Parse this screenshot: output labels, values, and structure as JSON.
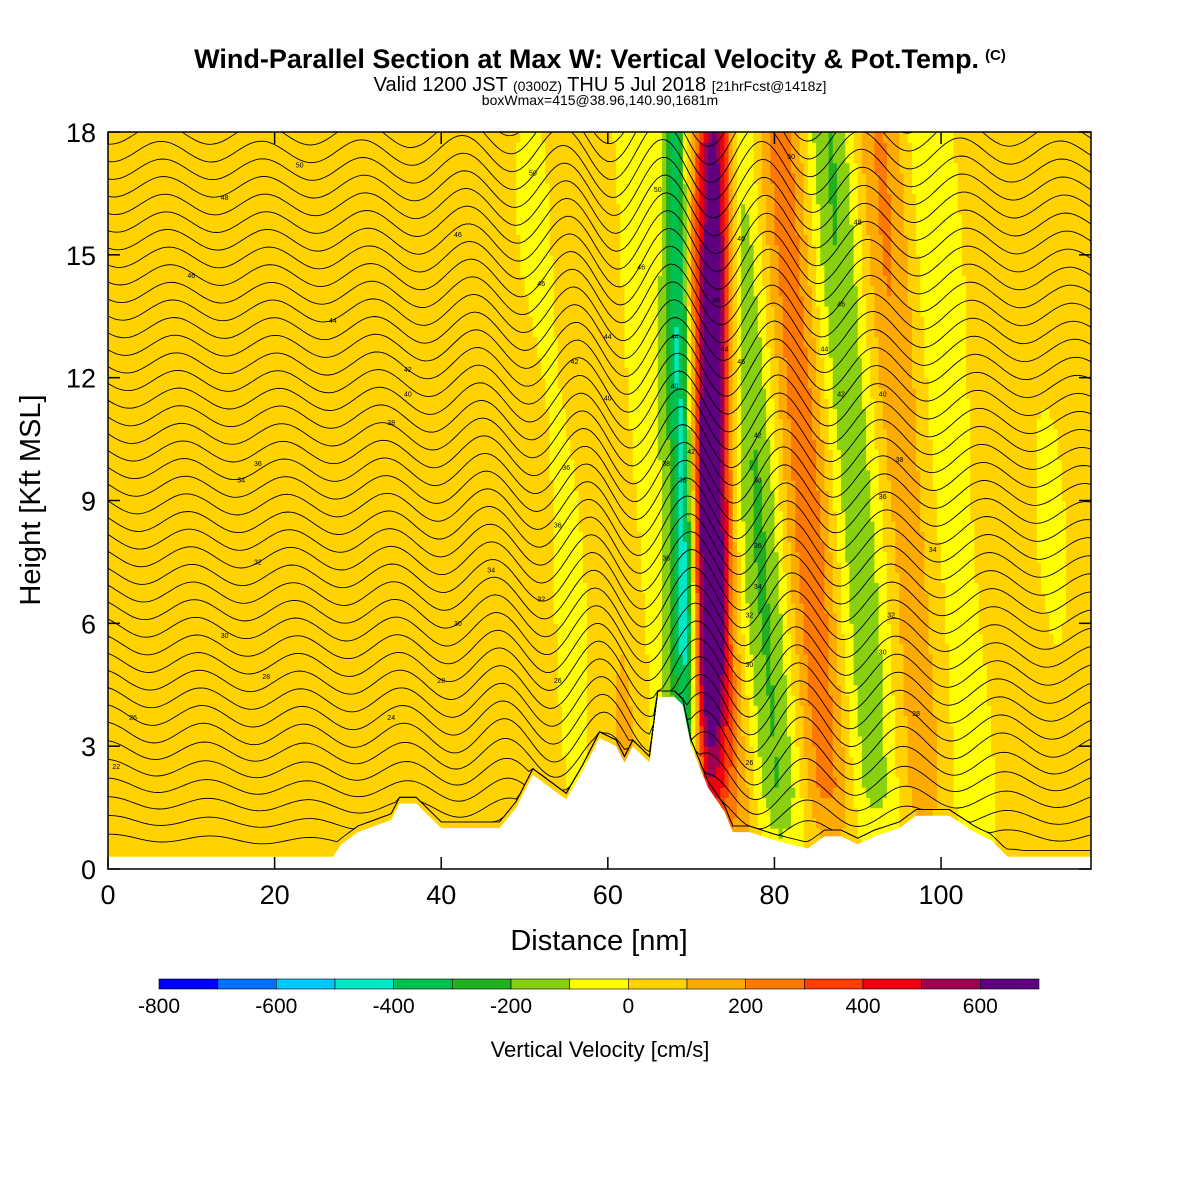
{
  "header": {
    "title": "Wind-Parallel Section at Max W: Vertical Velocity & Pot.Temp.",
    "title_mark": "(C)",
    "valid_prefix": "Valid 1200 JST",
    "valid_utc": "(0300Z)",
    "valid_date": "THU 5 Jul 2018",
    "forecast": "[21hrFcst@1418z]",
    "box_info": "boxWmax=415@38.96,140.90,1681m"
  },
  "chart_data": {
    "type": "heatmap",
    "xlabel": "Distance [nm]",
    "ylabel": "Height [Kft MSL]",
    "xlim": [
      0,
      118
    ],
    "ylim": [
      0,
      18
    ],
    "x_ticks": [
      0,
      20,
      40,
      60,
      80,
      100
    ],
    "y_ticks": [
      0,
      3,
      6,
      9,
      12,
      15,
      18
    ],
    "colorbar": {
      "label": "Vertical Velocity [cm/s]",
      "bounds": [
        -800,
        -700,
        -600,
        -500,
        -400,
        -300,
        -200,
        -100,
        0,
        100,
        200,
        300,
        400,
        500,
        600,
        700
      ],
      "tick_values": [
        -800,
        -600,
        -400,
        -200,
        0,
        200,
        400,
        600
      ],
      "tick_labels": [
        "-800",
        "-600",
        "-400",
        "-200",
        "0",
        "200",
        "400",
        "600"
      ],
      "colors": [
        "#0000ff",
        "#0070ff",
        "#00c8ff",
        "#00e8c8",
        "#00c050",
        "#20b020",
        "#88d010",
        "#ffff00",
        "#ffd200",
        "#ffaa00",
        "#ff7800",
        "#ff3c00",
        "#ee0010",
        "#a00050",
        "#600080"
      ]
    },
    "terrain": [
      [
        0,
        0.3
      ],
      [
        27,
        0.3
      ],
      [
        28,
        0.6
      ],
      [
        30,
        0.9
      ],
      [
        34,
        1.2
      ],
      [
        35,
        1.6
      ],
      [
        37,
        1.6
      ],
      [
        39,
        1.2
      ],
      [
        40,
        1.0
      ],
      [
        47,
        1.0
      ],
      [
        49,
        1.5
      ],
      [
        51,
        2.3
      ],
      [
        53,
        2.0
      ],
      [
        55,
        1.7
      ],
      [
        57,
        2.4
      ],
      [
        59,
        3.2
      ],
      [
        61,
        3.0
      ],
      [
        62,
        2.6
      ],
      [
        63,
        3.0
      ],
      [
        65,
        2.6
      ],
      [
        66,
        4.2
      ],
      [
        68,
        4.2
      ],
      [
        69,
        4.0
      ],
      [
        70,
        3.0
      ],
      [
        72,
        2.0
      ],
      [
        74,
        1.4
      ],
      [
        75,
        0.9
      ],
      [
        77,
        0.9
      ],
      [
        80,
        0.7
      ],
      [
        84,
        0.5
      ],
      [
        86,
        0.8
      ],
      [
        88,
        0.8
      ],
      [
        90,
        0.6
      ],
      [
        92,
        0.8
      ],
      [
        95,
        1.0
      ],
      [
        97,
        1.3
      ],
      [
        101,
        1.3
      ],
      [
        104,
        0.9
      ],
      [
        106,
        0.7
      ],
      [
        108,
        0.3
      ],
      [
        118,
        0.3
      ]
    ],
    "updraft_band": {
      "x_bottom": 72,
      "x_top": 73,
      "max_value": 700
    },
    "downdraft_band": {
      "x_bottom": 70,
      "x_top": 68,
      "min_value": -500
    },
    "isentrope_labels": [
      {
        "v": "50",
        "x": 23,
        "y": 17.2
      },
      {
        "v": "48",
        "x": 14,
        "y": 16.4
      },
      {
        "v": "46",
        "x": 10,
        "y": 14.5
      },
      {
        "v": "44",
        "x": 27,
        "y": 13.4
      },
      {
        "v": "42",
        "x": 36,
        "y": 12.2
      },
      {
        "v": "40",
        "x": 36,
        "y": 11.6
      },
      {
        "v": "38",
        "x": 34,
        "y": 10.9
      },
      {
        "v": "36",
        "x": 18,
        "y": 9.9
      },
      {
        "v": "34",
        "x": 16,
        "y": 9.5
      },
      {
        "v": "32",
        "x": 18,
        "y": 7.5
      },
      {
        "v": "30",
        "x": 14,
        "y": 5.7
      },
      {
        "v": "28",
        "x": 19,
        "y": 4.7
      },
      {
        "v": "26",
        "x": 3,
        "y": 3.7
      },
      {
        "v": "24",
        "x": 34,
        "y": 3.7
      },
      {
        "v": "22",
        "x": 1,
        "y": 2.5
      },
      {
        "v": "46",
        "x": 42,
        "y": 15.5
      },
      {
        "v": "46",
        "x": 52,
        "y": 14.3
      },
      {
        "v": "50",
        "x": 51,
        "y": 17.0
      },
      {
        "v": "42",
        "x": 56,
        "y": 12.4
      },
      {
        "v": "40",
        "x": 60,
        "y": 11.5
      },
      {
        "v": "36",
        "x": 55,
        "y": 9.8
      },
      {
        "v": "36",
        "x": 54,
        "y": 8.4
      },
      {
        "v": "34",
        "x": 46,
        "y": 7.3
      },
      {
        "v": "32",
        "x": 52,
        "y": 6.6
      },
      {
        "v": "30",
        "x": 42,
        "y": 6.0
      },
      {
        "v": "28",
        "x": 40,
        "y": 4.6
      },
      {
        "v": "26",
        "x": 54,
        "y": 4.6
      },
      {
        "v": "46",
        "x": 64,
        "y": 14.7
      },
      {
        "v": "50",
        "x": 66,
        "y": 16.6
      },
      {
        "v": "44",
        "x": 60,
        "y": 13.0
      },
      {
        "v": "44",
        "x": 68,
        "y": 13.0
      },
      {
        "v": "40",
        "x": 68,
        "y": 11.8
      },
      {
        "v": "38",
        "x": 67,
        "y": 9.9
      },
      {
        "v": "36",
        "x": 67,
        "y": 7.6
      },
      {
        "v": "36",
        "x": 69,
        "y": 9.5
      },
      {
        "v": "48",
        "x": 73,
        "y": 13.9
      },
      {
        "v": "44",
        "x": 74,
        "y": 12.7
      },
      {
        "v": "46",
        "x": 76,
        "y": 15.4
      },
      {
        "v": "46",
        "x": 76,
        "y": 12.4
      },
      {
        "v": "42",
        "x": 78,
        "y": 10.6
      },
      {
        "v": "38",
        "x": 78,
        "y": 9.5
      },
      {
        "v": "36",
        "x": 78,
        "y": 7.9
      },
      {
        "v": "34",
        "x": 78,
        "y": 6.9
      },
      {
        "v": "32",
        "x": 77,
        "y": 6.2
      },
      {
        "v": "30",
        "x": 77,
        "y": 5.0
      },
      {
        "v": "26",
        "x": 77,
        "y": 2.6
      },
      {
        "v": "50",
        "x": 82,
        "y": 17.4
      },
      {
        "v": "48",
        "x": 90,
        "y": 15.8
      },
      {
        "v": "46",
        "x": 88,
        "y": 13.8
      },
      {
        "v": "44",
        "x": 86,
        "y": 12.7
      },
      {
        "v": "42",
        "x": 88,
        "y": 11.6
      },
      {
        "v": "40",
        "x": 93,
        "y": 11.6
      },
      {
        "v": "38",
        "x": 95,
        "y": 10.0
      },
      {
        "v": "36",
        "x": 93,
        "y": 9.1
      },
      {
        "v": "34",
        "x": 99,
        "y": 7.8
      },
      {
        "v": "32",
        "x": 94,
        "y": 6.2
      },
      {
        "v": "30",
        "x": 93,
        "y": 5.3
      },
      {
        "v": "28",
        "x": 97,
        "y": 3.8
      },
      {
        "v": "42",
        "x": 70,
        "y": 10.2
      }
    ]
  }
}
